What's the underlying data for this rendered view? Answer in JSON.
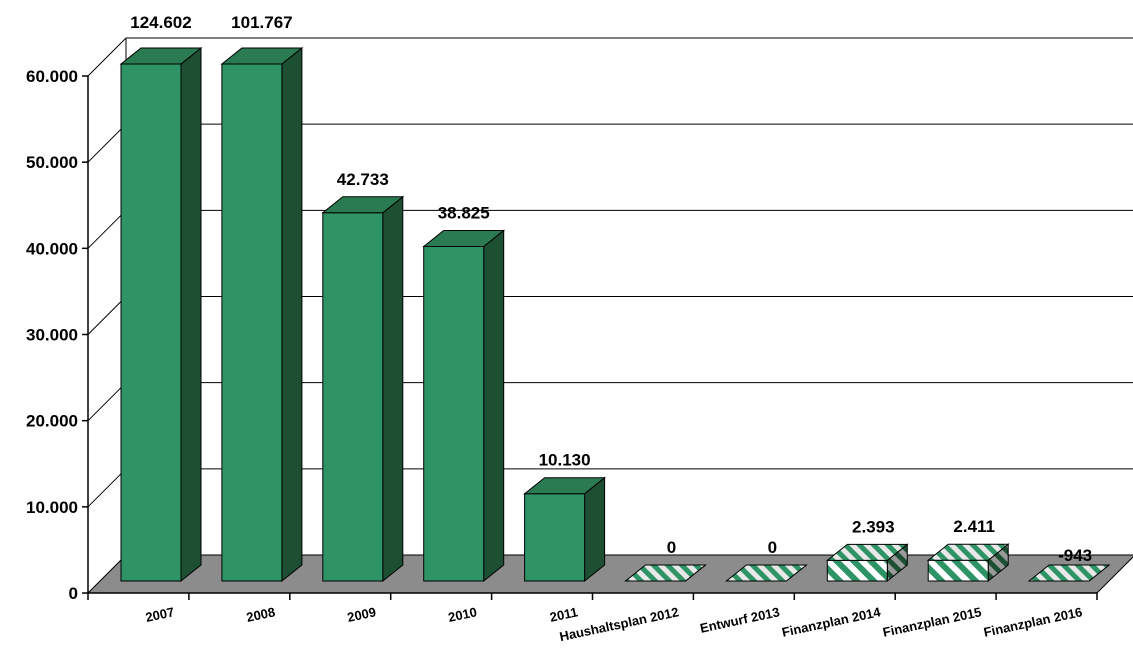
{
  "chart_data": {
    "type": "bar",
    "title": "",
    "xlabel": "",
    "ylabel": "",
    "ylim": [
      0,
      60000
    ],
    "yticks": [
      "0",
      "10.000",
      "20.000",
      "30.000",
      "40.000",
      "50.000",
      "60.000"
    ],
    "grid": true,
    "categories": [
      "2007",
      "2008",
      "2009",
      "2010",
      "2011",
      "Haushaltsplan 2012",
      "Entwurf 2013",
      "Finanzplan 2014",
      "Finanzplan 2015",
      "Finanzplan 2016"
    ],
    "values": [
      124602,
      101767,
      42733,
      38825,
      10130,
      0,
      0,
      2393,
      2411,
      -943
    ],
    "value_labels": [
      "124.602",
      "101.767",
      "42.733",
      "38.825",
      "10.130",
      "0",
      "0",
      "2.393",
      "2.411",
      "-943"
    ],
    "bar_style": [
      "solid",
      "solid",
      "solid",
      "solid",
      "solid",
      "hatched",
      "hatched",
      "hatched",
      "hatched",
      "hatched"
    ]
  },
  "colors": {
    "bar_front": "#2e9466",
    "bar_side": "#1d4f33",
    "bar_top": "#2a7a52",
    "hatch_stripe": "#2e9466",
    "floor": "#8c8c8c",
    "grid": "#000000"
  }
}
